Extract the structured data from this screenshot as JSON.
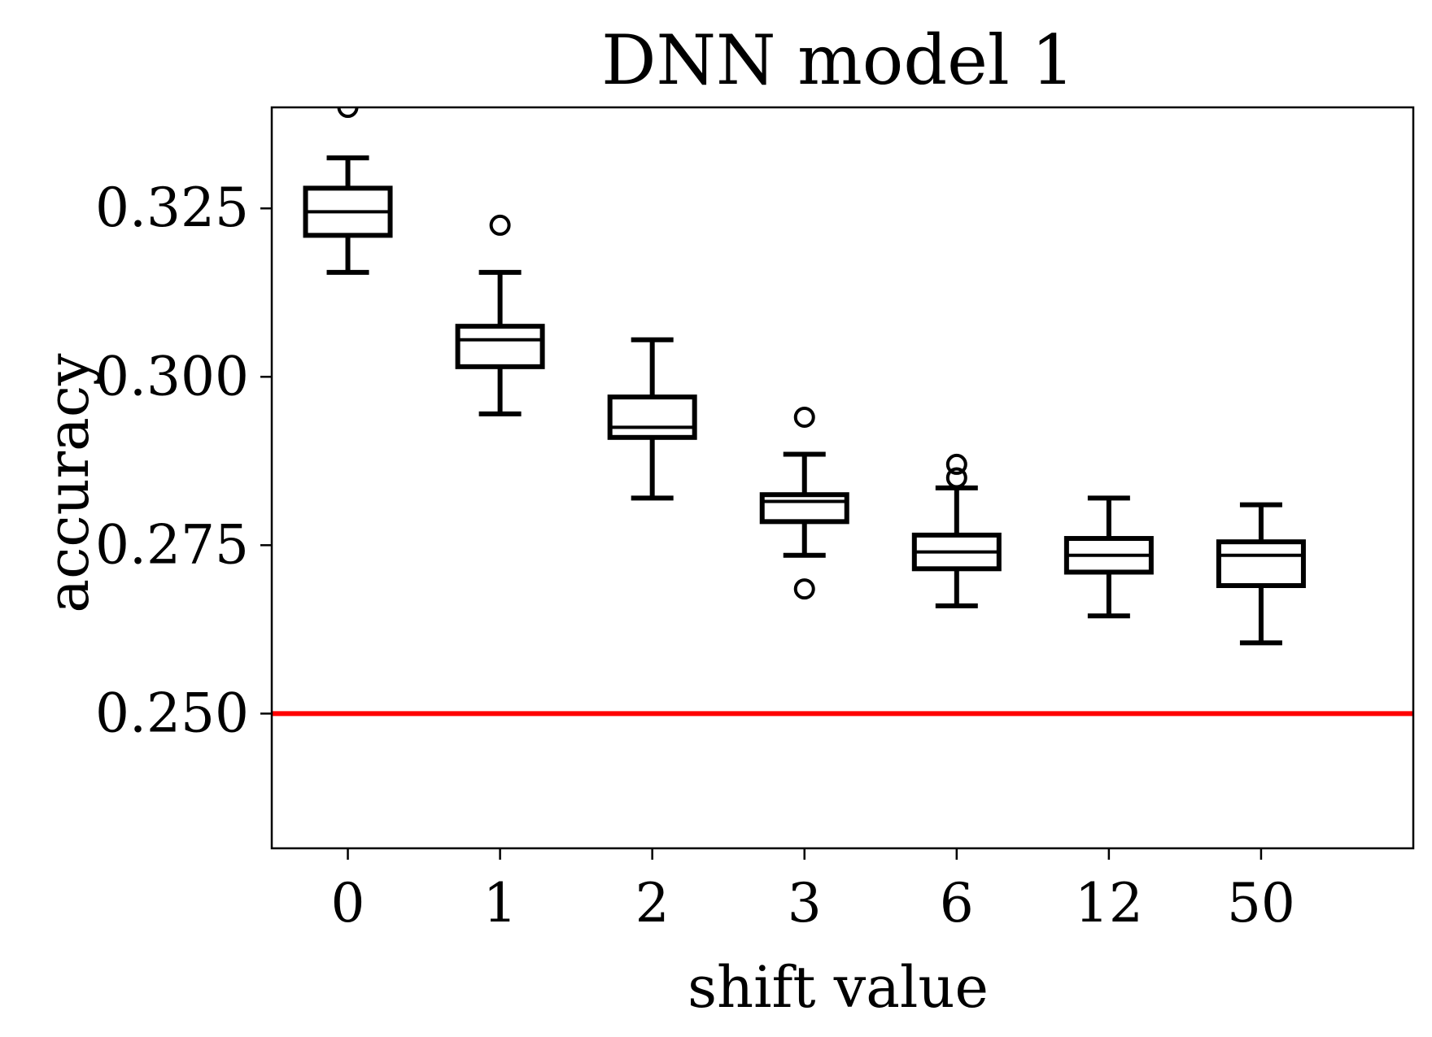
{
  "chart_data": {
    "type": "box",
    "title": "DNN model 1",
    "xlabel": "shift value",
    "ylabel": "accuracy",
    "categories": [
      "0",
      "1",
      "2",
      "3",
      "6",
      "12",
      "50"
    ],
    "ylim": [
      0.23,
      0.34
    ],
    "yticks": [
      0.25,
      0.275,
      0.3,
      0.325
    ],
    "ytick_labels": [
      "0.250",
      "0.275",
      "0.300",
      "0.325"
    ],
    "grid": false,
    "reference_line": {
      "y": 0.25,
      "color": "#ff0000"
    },
    "boxes": [
      {
        "category": "0",
        "whisker_low": 0.3155,
        "q1": 0.321,
        "median": 0.3245,
        "q3": 0.328,
        "whisker_high": 0.3325,
        "outliers": [
          0.34
        ]
      },
      {
        "category": "1",
        "whisker_low": 0.2945,
        "q1": 0.3015,
        "median": 0.3055,
        "q3": 0.3075,
        "whisker_high": 0.3155,
        "outliers": [
          0.3225
        ]
      },
      {
        "category": "2",
        "whisker_low": 0.282,
        "q1": 0.291,
        "median": 0.2925,
        "q3": 0.297,
        "whisker_high": 0.3055,
        "outliers": []
      },
      {
        "category": "3",
        "whisker_low": 0.2735,
        "q1": 0.2785,
        "median": 0.2815,
        "q3": 0.2825,
        "whisker_high": 0.2885,
        "outliers": [
          0.294,
          0.2685
        ]
      },
      {
        "category": "6",
        "whisker_low": 0.266,
        "q1": 0.2715,
        "median": 0.274,
        "q3": 0.2765,
        "whisker_high": 0.2835,
        "outliers": [
          0.287,
          0.285
        ]
      },
      {
        "category": "12",
        "whisker_low": 0.2645,
        "q1": 0.271,
        "median": 0.2735,
        "q3": 0.276,
        "whisker_high": 0.282,
        "outliers": []
      },
      {
        "category": "50",
        "whisker_low": 0.2605,
        "q1": 0.269,
        "median": 0.2735,
        "q3": 0.2755,
        "whisker_high": 0.281,
        "outliers": []
      }
    ]
  }
}
